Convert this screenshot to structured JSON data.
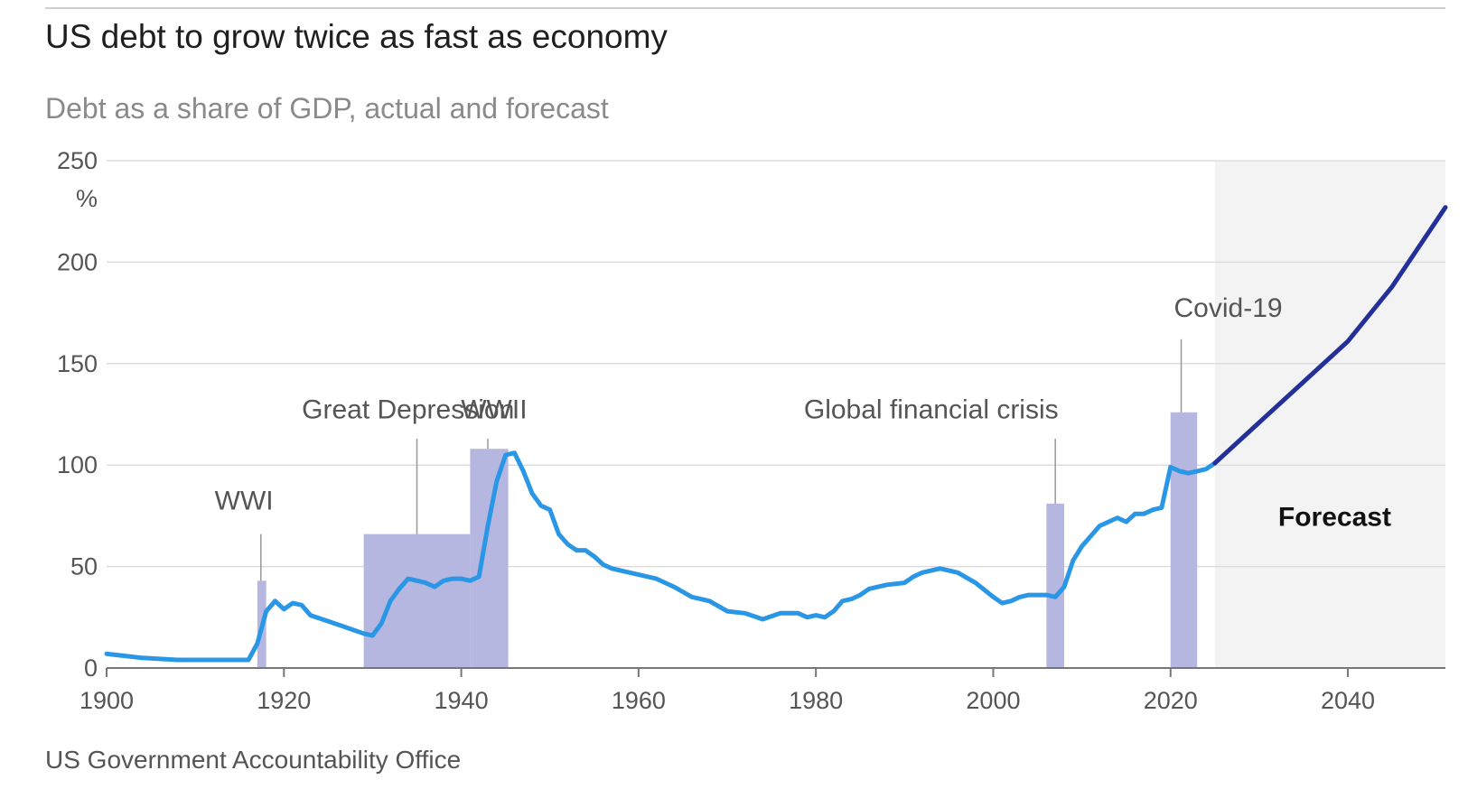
{
  "header": {
    "title": "US debt to grow twice as fast as economy",
    "subtitle": "Debt as a share of GDP, actual and forecast"
  },
  "footer": {
    "source": "US Government Accountability Office"
  },
  "colors": {
    "actual_line": "#2a97e6",
    "forecast_line": "#23309a",
    "event_bar": "#b5b7e0",
    "forecast_bg": "#f3f3f3",
    "grid": "#dddddd",
    "axis": "#777777"
  },
  "chart_data": {
    "type": "line",
    "title": "US debt to grow twice as fast as economy",
    "subtitle": "Debt as a share of GDP, actual and forecast",
    "y_unit": "%",
    "xlim": [
      1900,
      2051
    ],
    "ylim": [
      0,
      250
    ],
    "x_ticks": [
      1900,
      1920,
      1940,
      1960,
      1980,
      2000,
      2020,
      2040
    ],
    "y_ticks": [
      0,
      50,
      100,
      150,
      200,
      250
    ],
    "grid": true,
    "series": [
      {
        "name": "",
        "role": "actual",
        "points": [
          [
            1900,
            7
          ],
          [
            1902,
            6
          ],
          [
            1904,
            5
          ],
          [
            1908,
            4
          ],
          [
            1910,
            4
          ],
          [
            1912,
            4
          ],
          [
            1916,
            4
          ],
          [
            1917,
            12
          ],
          [
            1918,
            28
          ],
          [
            1919,
            33
          ],
          [
            1920,
            29
          ],
          [
            1921,
            32
          ],
          [
            1922,
            31
          ],
          [
            1923,
            26
          ],
          [
            1925,
            23
          ],
          [
            1927,
            20
          ],
          [
            1929,
            17
          ],
          [
            1930,
            16
          ],
          [
            1931,
            22
          ],
          [
            1932,
            33
          ],
          [
            1933,
            39
          ],
          [
            1934,
            44
          ],
          [
            1935,
            43
          ],
          [
            1936,
            42
          ],
          [
            1937,
            40
          ],
          [
            1938,
            43
          ],
          [
            1939,
            44
          ],
          [
            1940,
            44
          ],
          [
            1941,
            43
          ],
          [
            1942,
            45
          ],
          [
            1943,
            70
          ],
          [
            1944,
            92
          ],
          [
            1945,
            105
          ],
          [
            1946,
            106
          ],
          [
            1947,
            97
          ],
          [
            1948,
            86
          ],
          [
            1949,
            80
          ],
          [
            1950,
            78
          ],
          [
            1951,
            66
          ],
          [
            1952,
            61
          ],
          [
            1953,
            58
          ],
          [
            1954,
            58
          ],
          [
            1955,
            55
          ],
          [
            1956,
            51
          ],
          [
            1957,
            49
          ],
          [
            1958,
            48
          ],
          [
            1960,
            46
          ],
          [
            1962,
            44
          ],
          [
            1964,
            40
          ],
          [
            1966,
            35
          ],
          [
            1968,
            33
          ],
          [
            1970,
            28
          ],
          [
            1972,
            27
          ],
          [
            1974,
            24
          ],
          [
            1976,
            27
          ],
          [
            1978,
            27
          ],
          [
            1979,
            25
          ],
          [
            1980,
            26
          ],
          [
            1981,
            25
          ],
          [
            1982,
            28
          ],
          [
            1983,
            33
          ],
          [
            1984,
            34
          ],
          [
            1985,
            36
          ],
          [
            1986,
            39
          ],
          [
            1988,
            41
          ],
          [
            1990,
            42
          ],
          [
            1991,
            45
          ],
          [
            1992,
            47
          ],
          [
            1994,
            49
          ],
          [
            1996,
            47
          ],
          [
            1998,
            42
          ],
          [
            2000,
            35
          ],
          [
            2001,
            32
          ],
          [
            2002,
            33
          ],
          [
            2003,
            35
          ],
          [
            2004,
            36
          ],
          [
            2005,
            36
          ],
          [
            2006,
            36
          ],
          [
            2007,
            35
          ],
          [
            2008,
            40
          ],
          [
            2009,
            53
          ],
          [
            2010,
            60
          ],
          [
            2011,
            65
          ],
          [
            2012,
            70
          ],
          [
            2013,
            72
          ],
          [
            2014,
            74
          ],
          [
            2015,
            72
          ],
          [
            2016,
            76
          ],
          [
            2017,
            76
          ],
          [
            2018,
            78
          ],
          [
            2019,
            79
          ],
          [
            2020,
            99
          ],
          [
            2021,
            97
          ],
          [
            2022,
            96
          ],
          [
            2023,
            97
          ],
          [
            2024,
            98
          ],
          [
            2025,
            101
          ]
        ]
      },
      {
        "name": "Forecast",
        "role": "forecast",
        "points": [
          [
            2025,
            101
          ],
          [
            2030,
            121
          ],
          [
            2035,
            141
          ],
          [
            2040,
            161
          ],
          [
            2045,
            188
          ],
          [
            2051,
            227
          ]
        ]
      }
    ],
    "shaded_regions": [
      {
        "label": "Forecast",
        "x_start": 2025,
        "x_end": 2051
      }
    ],
    "event_bars": [
      {
        "label": "WWI",
        "x_start": 1917,
        "x_end": 1918,
        "height": 43,
        "label_x": 1915.5,
        "label_y": 78,
        "leader_x": 1917.4,
        "leader_y": 66
      },
      {
        "label": "Great Depression",
        "x_start": 1929,
        "x_end": 1941,
        "height": 66,
        "label_x": 1934,
        "label_y": 123,
        "leader_x": 1935,
        "leader_y": 113
      },
      {
        "label": "WWII",
        "x_start": 1941,
        "x_end": 1945.3,
        "height": 108,
        "label_x": 1943.7,
        "label_y": 123,
        "leader_x": 1943,
        "leader_y": 113
      },
      {
        "label": "Global financial crisis",
        "x_start": 2006,
        "x_end": 2008,
        "height": 81,
        "label_x": 1993,
        "label_y": 123,
        "leader_x": 2007,
        "leader_y": 113
      },
      {
        "label": "Covid-19",
        "x_start": 2020,
        "x_end": 2023,
        "height": 126,
        "label_x": 2026.5,
        "label_y": 173,
        "leader_x": 2021.2,
        "leader_y": 162
      }
    ]
  }
}
